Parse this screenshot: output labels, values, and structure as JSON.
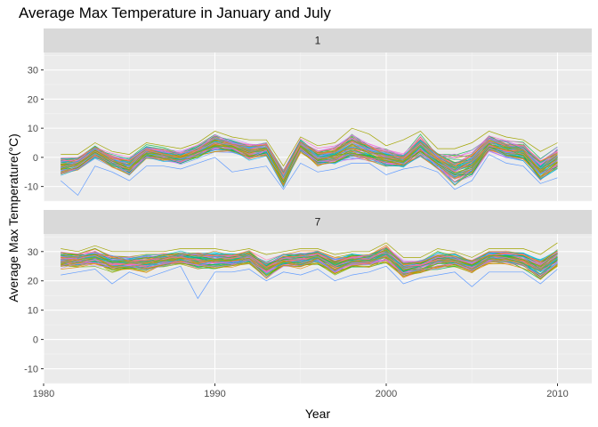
{
  "chart_data": {
    "type": "line",
    "title": "Average Max Temperature in January and July",
    "xlabel": "Year",
    "ylabel": "Average Max Temperature(°C)",
    "xlim": [
      1980,
      2012
    ],
    "ylim": [
      -15,
      36
    ],
    "x_ticks": [
      1980,
      1990,
      2000,
      2010
    ],
    "y_ticks": [
      -10,
      0,
      10,
      20,
      30
    ],
    "grid": true,
    "legend": "none",
    "years": [
      1981,
      1982,
      1983,
      1984,
      1985,
      1986,
      1987,
      1988,
      1989,
      1990,
      1991,
      1992,
      1993,
      1994,
      1995,
      1996,
      1997,
      1998,
      1999,
      2000,
      2001,
      2002,
      2003,
      2004,
      2005,
      2006,
      2007,
      2008,
      2009,
      2010
    ],
    "panels": [
      {
        "strip": "1",
        "series_count": 80,
        "mean_values": [
          -3,
          -2,
          2,
          -1,
          -3,
          2,
          1,
          0,
          2,
          5,
          4,
          2,
          3,
          -7,
          4,
          0,
          1,
          4,
          2,
          0,
          -1,
          4,
          -1,
          -4,
          -2,
          5,
          3,
          2,
          -4,
          0
        ],
        "upper_values": [
          1,
          1,
          5,
          2,
          1,
          5,
          4,
          3,
          5,
          9,
          7,
          6,
          6,
          -3,
          7,
          4,
          5,
          10,
          8,
          4,
          6,
          9,
          3,
          3,
          5,
          9,
          7,
          6,
          2,
          5
        ],
        "lower_values": [
          -8,
          -13,
          -3,
          -5,
          -8,
          -3,
          -3,
          -4,
          -2,
          0,
          -5,
          -4,
          -3,
          -11,
          -2,
          -5,
          -4,
          -2,
          -2,
          -6,
          -4,
          -3,
          -5,
          -11,
          -8,
          1,
          -2,
          -3,
          -9,
          -7
        ]
      },
      {
        "strip": "7",
        "series_count": 80,
        "mean_values": [
          27,
          27,
          28,
          26,
          26,
          26,
          27,
          28,
          27,
          27,
          27,
          28,
          24,
          27,
          27,
          28,
          25,
          27,
          27,
          29,
          24,
          25,
          27,
          27,
          25,
          28,
          28,
          27,
          24,
          28
        ],
        "upper_values": [
          31,
          30,
          32,
          30,
          30,
          30,
          30,
          31,
          31,
          31,
          30,
          31,
          29,
          30,
          31,
          31,
          29,
          30,
          30,
          33,
          28,
          28,
          31,
          30,
          28,
          31,
          31,
          31,
          29,
          33
        ],
        "lower_values": [
          22,
          23,
          24,
          19,
          23,
          21,
          23,
          25,
          14,
          23,
          23,
          24,
          20,
          23,
          22,
          24,
          20,
          22,
          23,
          25,
          19,
          21,
          22,
          23,
          18,
          23,
          23,
          23,
          19,
          24
        ]
      }
    ]
  }
}
